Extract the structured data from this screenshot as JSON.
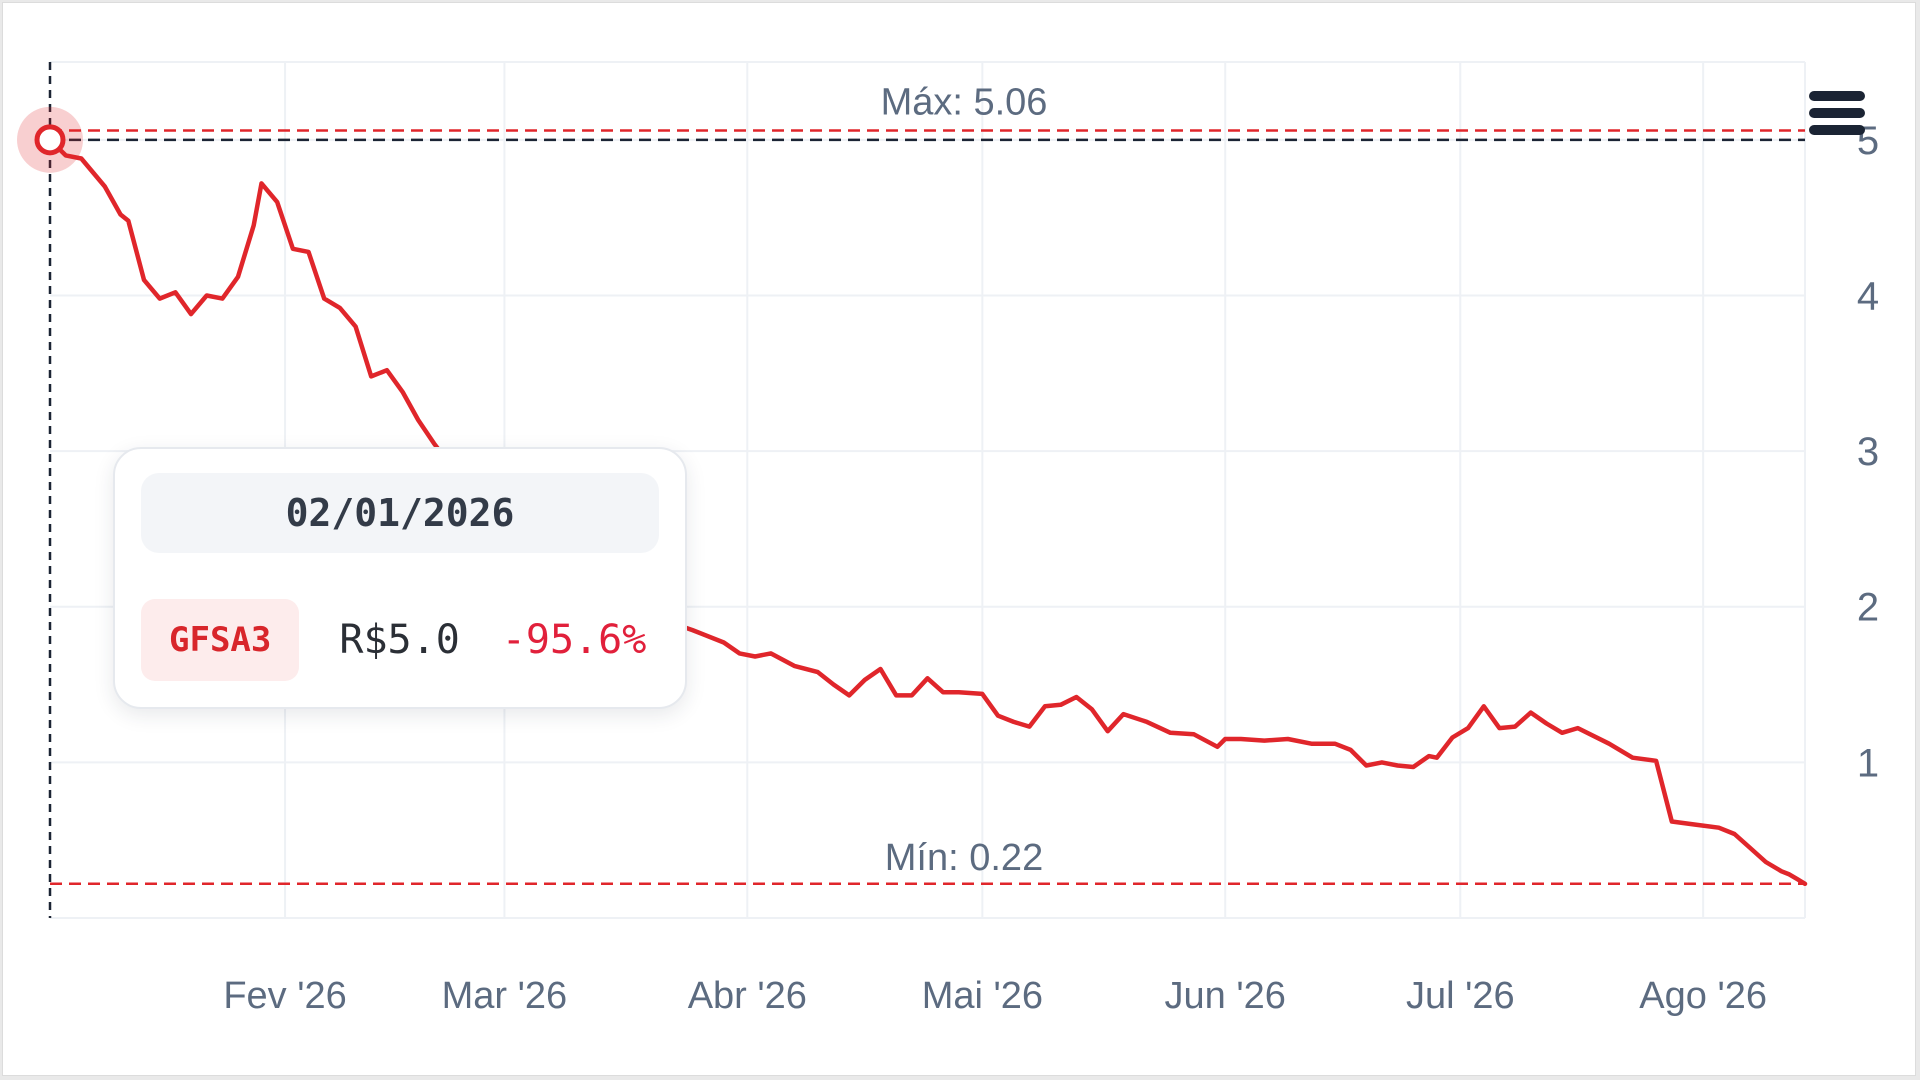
{
  "chart_data": {
    "type": "line",
    "ticker": "GFSA3",
    "y_ticks": [
      1,
      2,
      3,
      4,
      5
    ],
    "ylim": [
      0,
      5.5
    ],
    "x_ticks": [
      {
        "label": "Fev '26",
        "date": "2026-02-01"
      },
      {
        "label": "Mar '26",
        "date": "2026-03-01"
      },
      {
        "label": "Abr '26",
        "date": "2026-04-01"
      },
      {
        "label": "Mai '26",
        "date": "2026-05-01"
      },
      {
        "label": "Jun '26",
        "date": "2026-06-01"
      },
      {
        "label": "Jul '26",
        "date": "2026-07-01"
      },
      {
        "label": "Ago '26",
        "date": "2026-08-01"
      }
    ],
    "xlim": [
      "2026-01-02",
      "2026-08-14"
    ],
    "max_label": "Máx: 5.06",
    "max_value": 5.06,
    "min_label": "Mín: 0.22",
    "min_value": 0.22,
    "crosshair_value": 5.0,
    "series": [
      {
        "color": "#e0262b",
        "points": [
          [
            "2026-01-02",
            5.0
          ],
          [
            "2026-01-04",
            4.9
          ],
          [
            "2026-01-06",
            4.88
          ],
          [
            "2026-01-09",
            4.7
          ],
          [
            "2026-01-11",
            4.52
          ],
          [
            "2026-01-12",
            4.48
          ],
          [
            "2026-01-14",
            4.1
          ],
          [
            "2026-01-16",
            3.98
          ],
          [
            "2026-01-18",
            4.02
          ],
          [
            "2026-01-20",
            3.88
          ],
          [
            "2026-01-22",
            4.0
          ],
          [
            "2026-01-24",
            3.98
          ],
          [
            "2026-01-26",
            4.12
          ],
          [
            "2026-01-28",
            4.45
          ],
          [
            "2026-01-29",
            4.72
          ],
          [
            "2026-01-31",
            4.6
          ],
          [
            "2026-02-02",
            4.3
          ],
          [
            "2026-02-04",
            4.28
          ],
          [
            "2026-02-06",
            3.98
          ],
          [
            "2026-02-08",
            3.92
          ],
          [
            "2026-02-10",
            3.8
          ],
          [
            "2026-02-12",
            3.48
          ],
          [
            "2026-02-14",
            3.52
          ],
          [
            "2026-02-16",
            3.38
          ],
          [
            "2026-02-18",
            3.2
          ],
          [
            "2026-02-20",
            3.05
          ],
          [
            "2026-02-23",
            2.85
          ],
          [
            "2026-02-26",
            2.7
          ],
          [
            "2026-03-01",
            2.55
          ],
          [
            "2026-03-05",
            2.38
          ],
          [
            "2026-03-09",
            2.25
          ],
          [
            "2026-03-13",
            2.1
          ],
          [
            "2026-03-17",
            2.0
          ],
          [
            "2026-03-21",
            1.92
          ],
          [
            "2026-03-25",
            1.85
          ],
          [
            "2026-03-29",
            1.77
          ],
          [
            "2026-03-31",
            1.7
          ],
          [
            "2026-04-02",
            1.68
          ],
          [
            "2026-04-04",
            1.7
          ],
          [
            "2026-04-07",
            1.62
          ],
          [
            "2026-04-10",
            1.58
          ],
          [
            "2026-04-12",
            1.5
          ],
          [
            "2026-04-14",
            1.43
          ],
          [
            "2026-04-16",
            1.53
          ],
          [
            "2026-04-18",
            1.6
          ],
          [
            "2026-04-20",
            1.43
          ],
          [
            "2026-04-22",
            1.43
          ],
          [
            "2026-04-24",
            1.54
          ],
          [
            "2026-04-26",
            1.45
          ],
          [
            "2026-04-28",
            1.45
          ],
          [
            "2026-05-01",
            1.44
          ],
          [
            "2026-05-03",
            1.3
          ],
          [
            "2026-05-05",
            1.26
          ],
          [
            "2026-05-07",
            1.23
          ],
          [
            "2026-05-09",
            1.36
          ],
          [
            "2026-05-11",
            1.37
          ],
          [
            "2026-05-13",
            1.42
          ],
          [
            "2026-05-15",
            1.34
          ],
          [
            "2026-05-17",
            1.2
          ],
          [
            "2026-05-19",
            1.31
          ],
          [
            "2026-05-22",
            1.26
          ],
          [
            "2026-05-25",
            1.19
          ],
          [
            "2026-05-28",
            1.18
          ],
          [
            "2026-05-31",
            1.1
          ],
          [
            "2026-06-01",
            1.15
          ],
          [
            "2026-06-03",
            1.15
          ],
          [
            "2026-06-06",
            1.14
          ],
          [
            "2026-06-09",
            1.15
          ],
          [
            "2026-06-12",
            1.12
          ],
          [
            "2026-06-15",
            1.12
          ],
          [
            "2026-06-17",
            1.08
          ],
          [
            "2026-06-19",
            0.98
          ],
          [
            "2026-06-21",
            1.0
          ],
          [
            "2026-06-23",
            0.98
          ],
          [
            "2026-06-25",
            0.97
          ],
          [
            "2026-06-27",
            1.04
          ],
          [
            "2026-06-28",
            1.03
          ],
          [
            "2026-06-30",
            1.16
          ],
          [
            "2026-07-02",
            1.22
          ],
          [
            "2026-07-04",
            1.36
          ],
          [
            "2026-07-06",
            1.22
          ],
          [
            "2026-07-08",
            1.23
          ],
          [
            "2026-07-10",
            1.32
          ],
          [
            "2026-07-12",
            1.25
          ],
          [
            "2026-07-14",
            1.19
          ],
          [
            "2026-07-16",
            1.22
          ],
          [
            "2026-07-20",
            1.12
          ],
          [
            "2026-07-23",
            1.03
          ],
          [
            "2026-07-26",
            1.01
          ],
          [
            "2026-07-28",
            0.62
          ],
          [
            "2026-07-31",
            0.6
          ],
          [
            "2026-08-03",
            0.58
          ],
          [
            "2026-08-05",
            0.54
          ],
          [
            "2026-08-07",
            0.45
          ],
          [
            "2026-08-09",
            0.36
          ],
          [
            "2026-08-11",
            0.3
          ],
          [
            "2026-08-12",
            0.28
          ],
          [
            "2026-08-13",
            0.25
          ],
          [
            "2026-08-14",
            0.22
          ]
        ]
      }
    ]
  },
  "tooltip": {
    "date": "02/01/2026",
    "ticker": "GFSA3",
    "price": "R$5.0",
    "change": "-95.6%"
  }
}
